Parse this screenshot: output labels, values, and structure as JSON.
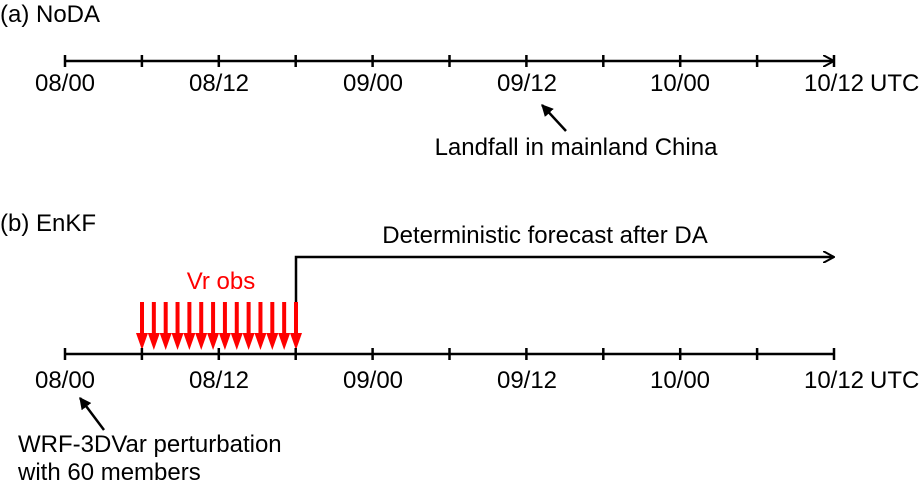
{
  "panel_a": {
    "title": "(a) NoDA",
    "tick_labels": [
      "08/00",
      "08/12",
      "09/00",
      "09/12",
      "10/00",
      "10/12"
    ],
    "unit_label": "UTC",
    "annotation": "Landfall in mainland China"
  },
  "panel_b": {
    "title": "(b) EnKF",
    "tick_labels": [
      "08/00",
      "08/12",
      "09/00",
      "09/12",
      "10/00",
      "10/12"
    ],
    "unit_label": "UTC",
    "forecast_label": "Deterministic forecast after DA",
    "obs_label": "Vr obs",
    "annotation_line1": "WRF-3DVar perturbation",
    "annotation_line2": "with 60 members"
  },
  "colors": {
    "axis": "#000000",
    "observations": "#ff0000"
  }
}
